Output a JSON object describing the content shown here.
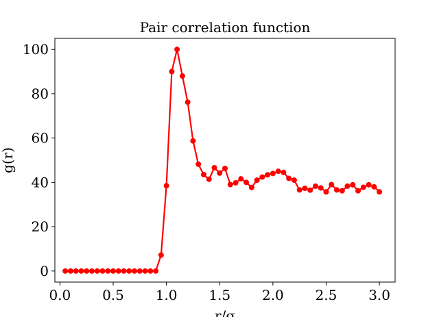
{
  "chart_data": {
    "type": "line",
    "title": "Pair correlation function",
    "xlabel": "r/σ",
    "ylabel": "g(r)",
    "xlim": [
      -0.0475,
      3.1475
    ],
    "ylim": [
      -5.0,
      105.0
    ],
    "grid": false,
    "xticks": [
      0.0,
      0.5,
      1.0,
      1.5,
      2.0,
      2.5,
      3.0
    ],
    "xtick_labels": [
      "0.0",
      "0.5",
      "1.0",
      "1.5",
      "2.0",
      "2.5",
      "3.0"
    ],
    "yticks": [
      0,
      20,
      40,
      60,
      80,
      100
    ],
    "ytick_labels": [
      "0",
      "20",
      "40",
      "60",
      "80",
      "100"
    ],
    "series": [
      {
        "color": "#ff0000",
        "marker": "circle",
        "x": [
          0.05,
          0.1,
          0.15,
          0.2,
          0.25,
          0.3,
          0.35,
          0.4,
          0.45,
          0.5,
          0.55,
          0.6,
          0.65,
          0.7,
          0.75,
          0.8,
          0.85,
          0.9,
          0.95,
          1.0,
          1.05,
          1.1,
          1.15,
          1.2,
          1.25,
          1.3,
          1.35,
          1.4,
          1.45,
          1.5,
          1.55,
          1.6,
          1.65,
          1.7,
          1.75,
          1.8,
          1.85,
          1.9,
          1.95,
          2.0,
          2.05,
          2.1,
          2.15,
          2.2,
          2.25,
          2.3,
          2.35,
          2.4,
          2.45,
          2.5,
          2.55,
          2.6,
          2.65,
          2.7,
          2.75,
          2.8,
          2.85,
          2.9,
          2.95,
          3.0
        ],
        "y": [
          0,
          0,
          0,
          0,
          0,
          0,
          0,
          0,
          0,
          0,
          0,
          0,
          0,
          0,
          0,
          0,
          0,
          0,
          7.2,
          38.5,
          90.0,
          100.0,
          88.0,
          76.2,
          58.7,
          48.2,
          43.5,
          41.4,
          46.6,
          44.2,
          46.3,
          39.0,
          39.8,
          41.6,
          40.0,
          37.7,
          41.0,
          42.4,
          43.4,
          44.0,
          45.0,
          44.5,
          41.8,
          41.0,
          36.6,
          37.3,
          36.5,
          38.3,
          37.5,
          35.7,
          39.0,
          36.6,
          36.2,
          38.3,
          38.9,
          36.2,
          37.8,
          38.9,
          38.0,
          35.7
        ]
      }
    ]
  }
}
